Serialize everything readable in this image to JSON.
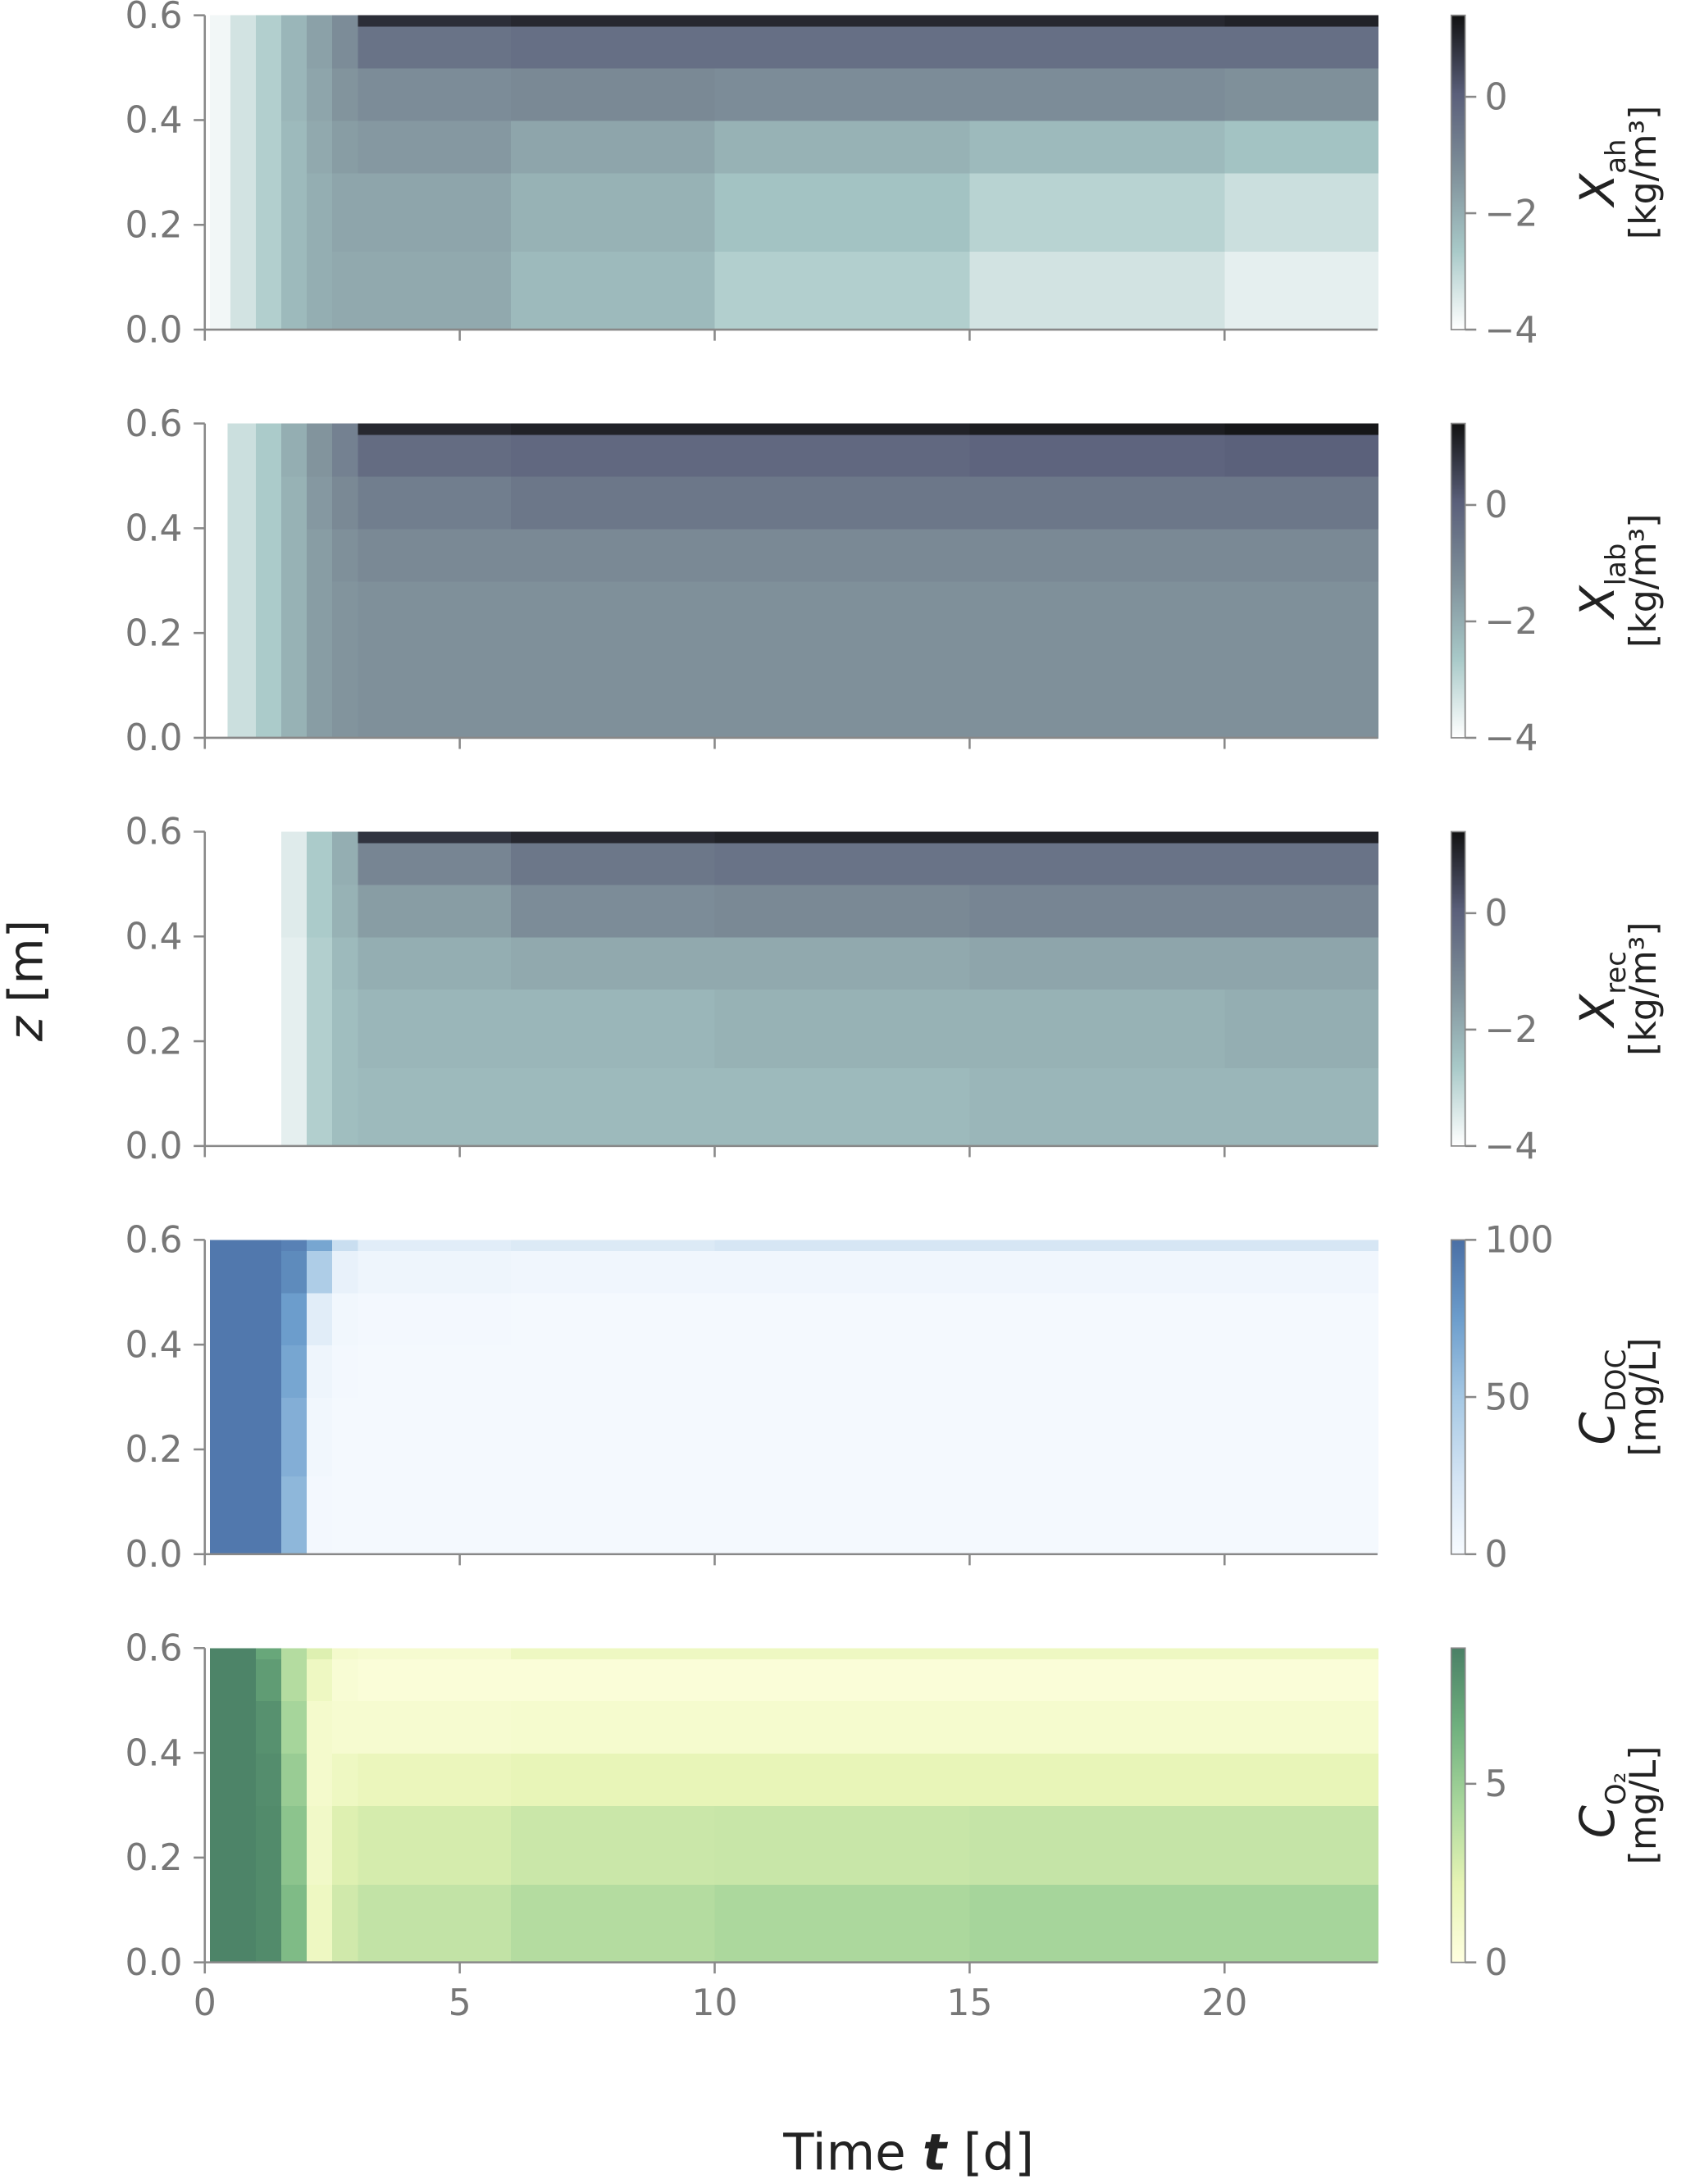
{
  "chart_data": [
    {
      "type": "heatmap",
      "label": "X",
      "label_sub": "ah",
      "unit": "[kg/m³]",
      "xlim": [
        0,
        23
      ],
      "ylim": [
        0,
        0.6
      ],
      "xticks": [
        0,
        5,
        10,
        15,
        20
      ],
      "show_xticklabels": false,
      "yticks": [
        {
          "value": 0,
          "label": "0.0"
        },
        0.2,
        0.4,
        0.6
      ],
      "zlim": [
        -4,
        1.4
      ],
      "zticks": [
        {
          "value": -4,
          "label": "−4"
        },
        {
          "value": -2,
          "label": "−2"
        },
        0
      ],
      "cmap": [
        "#ffffff",
        "#a8c9c8",
        "#7f909a",
        "#5a5f7a",
        "#111111"
      ],
      "x_edges": [
        0.1,
        0.5,
        1,
        1.5,
        2,
        2.5,
        3,
        6,
        10,
        15,
        20,
        23
      ],
      "y_edges": [
        0,
        0.15,
        0.3,
        0.4,
        0.5,
        0.58,
        0.6
      ],
      "z": [
        [
          -3.8,
          -3.3,
          -2.8,
          -2.3,
          -2.0,
          -1.9,
          -1.9,
          -2.3,
          -2.8,
          -3.3,
          -3.6
        ],
        [
          -3.8,
          -3.3,
          -2.8,
          -2.3,
          -2.0,
          -1.8,
          -1.8,
          -2.1,
          -2.5,
          -2.9,
          -3.2
        ],
        [
          -3.8,
          -3.3,
          -2.8,
          -2.3,
          -1.9,
          -1.6,
          -1.5,
          -1.8,
          -2.1,
          -2.3,
          -2.5
        ],
        [
          -3.8,
          -3.3,
          -2.8,
          -2.2,
          -1.8,
          -1.4,
          -1.2,
          -1.1,
          -1.2,
          -1.2,
          -1.3
        ],
        [
          -3.8,
          -3.3,
          -2.8,
          -2.2,
          -1.7,
          -1.2,
          -0.5,
          -0.4,
          -0.4,
          -0.4,
          -0.4
        ],
        [
          -3.8,
          -3.3,
          -2.8,
          -2.2,
          -1.7,
          -1.2,
          0.9,
          1.0,
          1.0,
          1.0,
          1.1
        ]
      ]
    },
    {
      "type": "heatmap",
      "label": "X",
      "label_sub": "lab",
      "unit": "[kg/m³]",
      "xlim": [
        0,
        23
      ],
      "ylim": [
        0,
        0.6
      ],
      "xticks": [
        0,
        5,
        10,
        15,
        20
      ],
      "show_xticklabels": false,
      "yticks": [
        {
          "value": 0,
          "label": "0.0"
        },
        0.2,
        0.4,
        0.6
      ],
      "zlim": [
        -4,
        1.4
      ],
      "zticks": [
        {
          "value": -4,
          "label": "−4"
        },
        {
          "value": -2,
          "label": "−2"
        },
        0
      ],
      "cmap": [
        "#ffffff",
        "#a8c9c8",
        "#7f909a",
        "#5a5f7a",
        "#111111"
      ],
      "x_edges": [
        0,
        0.45,
        1,
        1.5,
        2,
        2.5,
        3,
        6,
        10,
        15,
        20,
        23
      ],
      "y_edges": [
        0,
        0.15,
        0.3,
        0.4,
        0.5,
        0.58,
        0.6
      ],
      "z": [
        [
          null,
          -3.2,
          -2.7,
          -2.1,
          -1.6,
          -1.4,
          -1.3,
          -1.3,
          -1.3,
          -1.3,
          -1.3
        ],
        [
          null,
          -3.2,
          -2.7,
          -2.1,
          -1.6,
          -1.4,
          -1.3,
          -1.3,
          -1.3,
          -1.3,
          -1.3
        ],
        [
          null,
          -3.2,
          -2.7,
          -2.1,
          -1.6,
          -1.3,
          -1.1,
          -1.1,
          -1.1,
          -1.1,
          -1.1
        ],
        [
          null,
          -3.2,
          -2.7,
          -2.1,
          -1.5,
          -1.1,
          -0.8,
          -0.6,
          -0.6,
          -0.6,
          -0.6
        ],
        [
          null,
          -3.2,
          -2.7,
          -2.0,
          -1.4,
          -0.9,
          -0.3,
          -0.2,
          -0.2,
          -0.1,
          0.0
        ],
        [
          null,
          -3.2,
          -2.7,
          -2.0,
          -1.4,
          -0.9,
          1.0,
          1.1,
          1.1,
          1.2,
          1.3
        ]
      ]
    },
    {
      "type": "heatmap",
      "label": "X",
      "label_sub": "rec",
      "unit": "[kg/m³]",
      "ylabel_symbol": "z",
      "ylabel_unit": "[m]",
      "xlim": [
        0,
        23
      ],
      "ylim": [
        0,
        0.6
      ],
      "xticks": [
        0,
        5,
        10,
        15,
        20
      ],
      "show_xticklabels": false,
      "yticks": [
        {
          "value": 0,
          "label": "0.0"
        },
        0.2,
        0.4,
        0.6
      ],
      "zlim": [
        -4,
        1.4
      ],
      "zticks": [
        {
          "value": -4,
          "label": "−4"
        },
        {
          "value": -2,
          "label": "−2"
        },
        0
      ],
      "cmap": [
        "#ffffff",
        "#a8c9c8",
        "#7f909a",
        "#5a5f7a",
        "#111111"
      ],
      "x_edges": [
        0,
        0.5,
        1,
        1.5,
        2,
        2.5,
        3,
        6,
        10,
        15,
        20,
        23
      ],
      "y_edges": [
        0,
        0.15,
        0.3,
        0.4,
        0.5,
        0.58,
        0.6
      ],
      "z": [
        [
          null,
          null,
          null,
          -3.6,
          -2.8,
          -2.4,
          -2.3,
          -2.3,
          -2.3,
          -2.2,
          -2.2
        ],
        [
          null,
          null,
          null,
          -3.6,
          -2.8,
          -2.4,
          -2.2,
          -2.2,
          -2.1,
          -2.1,
          -2.0
        ],
        [
          null,
          null,
          null,
          -3.6,
          -2.8,
          -2.3,
          -2.0,
          -1.9,
          -1.9,
          -1.8,
          -1.8
        ],
        [
          null,
          null,
          null,
          -3.5,
          -2.7,
          -2.1,
          -1.6,
          -1.2,
          -1.1,
          -1.0,
          -1.0
        ],
        [
          null,
          null,
          null,
          -3.5,
          -2.7,
          -2.0,
          -1.0,
          -0.6,
          -0.5,
          -0.5,
          -0.5
        ],
        [
          null,
          null,
          null,
          -3.5,
          -2.7,
          -2.0,
          0.8,
          1.0,
          1.1,
          1.1,
          1.1
        ]
      ]
    },
    {
      "type": "heatmap",
      "label": "C",
      "label_sub": "DOC",
      "unit": "[mg/L]",
      "xlim": [
        0,
        23
      ],
      "ylim": [
        0,
        0.6
      ],
      "xticks": [
        0,
        5,
        10,
        15,
        20
      ],
      "show_xticklabels": false,
      "yticks": [
        {
          "value": 0,
          "label": "0.0"
        },
        0.2,
        0.4,
        0.6
      ],
      "zlim": [
        0,
        100
      ],
      "zticks": [
        0,
        50,
        100
      ],
      "cmap": [
        "#f7fbff",
        "#d2e3f3",
        "#a5c8e4",
        "#6c9dcc",
        "#4a6fa5"
      ],
      "x_edges": [
        0.1,
        0.5,
        1,
        1.5,
        2,
        2.5,
        3,
        6,
        10,
        15,
        20,
        23
      ],
      "y_edges": [
        0,
        0.15,
        0.3,
        0.4,
        0.5,
        0.58,
        0.6
      ],
      "z": [
        [
          95,
          95,
          95,
          60,
          3,
          2,
          2,
          2,
          2,
          2,
          2
        ],
        [
          95,
          95,
          95,
          65,
          4,
          2,
          2,
          2,
          2,
          2,
          2
        ],
        [
          95,
          95,
          95,
          70,
          6,
          3,
          2,
          2,
          2,
          2,
          2
        ],
        [
          95,
          95,
          95,
          75,
          15,
          4,
          3,
          2,
          2,
          2,
          2
        ],
        [
          95,
          95,
          95,
          85,
          45,
          10,
          6,
          5,
          5,
          5,
          5
        ],
        [
          95,
          95,
          95,
          90,
          70,
          30,
          15,
          18,
          22,
          22,
          22
        ]
      ]
    },
    {
      "type": "heatmap",
      "label": "C",
      "label_sub": "O₂",
      "unit": "[mg/L]",
      "xlabel": "Time",
      "xlabel_symbol": "t",
      "xlabel_unit": "[d]",
      "xlim": [
        0,
        23
      ],
      "ylim": [
        0,
        0.6
      ],
      "xticks": [
        0,
        5,
        10,
        15,
        20
      ],
      "show_xticklabels": true,
      "yticks": [
        {
          "value": 0,
          "label": "0.0"
        },
        0.2,
        0.4,
        0.6
      ],
      "zlim": [
        0,
        8.8
      ],
      "zticks": [
        0,
        5
      ],
      "cmap": [
        "#ffffe0",
        "#e6f4b4",
        "#a9d79c",
        "#6fb07e",
        "#4a8066"
      ],
      "x_edges": [
        0.1,
        0.5,
        1,
        1.5,
        2,
        2.5,
        3,
        6,
        10,
        15,
        20,
        23
      ],
      "y_edges": [
        0,
        0.15,
        0.3,
        0.4,
        0.5,
        0.58,
        0.6
      ],
      "z": [
        [
          8.6,
          8.6,
          8.3,
          6.0,
          1.5,
          3.0,
          3.5,
          4.0,
          4.3,
          4.5,
          4.5
        ],
        [
          8.6,
          8.6,
          8.3,
          5.5,
          1.2,
          2.5,
          2.8,
          3.2,
          3.3,
          3.4,
          3.4
        ],
        [
          8.6,
          8.6,
          8.2,
          5.0,
          1.0,
          1.5,
          1.8,
          2.0,
          2.0,
          2.0,
          2.0
        ],
        [
          8.6,
          8.6,
          8.0,
          4.5,
          1.0,
          0.8,
          0.8,
          0.9,
          0.9,
          0.9,
          0.9
        ],
        [
          8.6,
          8.6,
          7.5,
          4.0,
          1.5,
          0.6,
          0.4,
          0.4,
          0.4,
          0.4,
          0.4
        ],
        [
          8.6,
          8.6,
          7.0,
          4.0,
          2.5,
          1.0,
          0.8,
          1.5,
          1.5,
          1.5,
          1.5
        ]
      ]
    }
  ]
}
